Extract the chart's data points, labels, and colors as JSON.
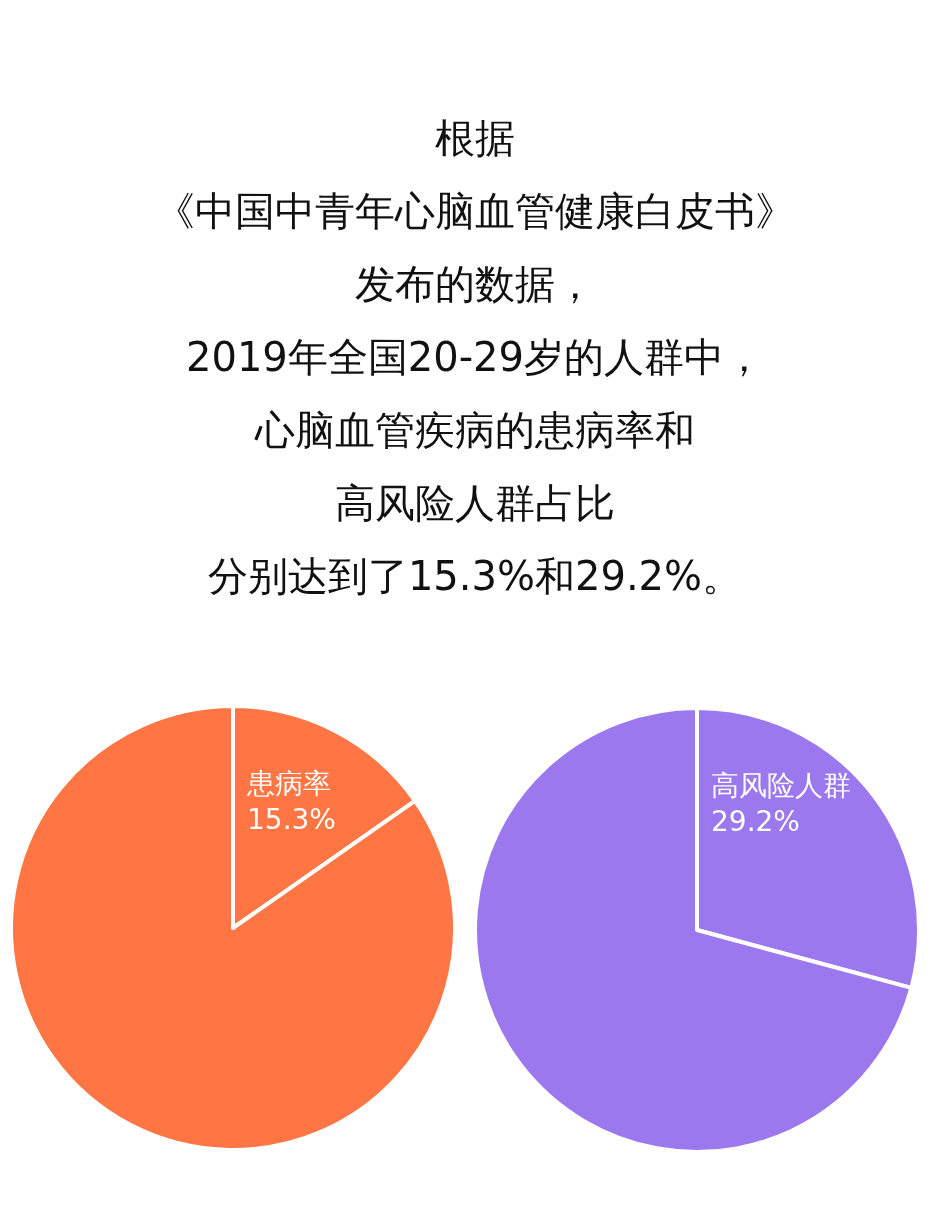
{
  "chart_data": [
    {
      "type": "other",
      "annotations": [
        "根据",
        "《中国中青年心脑血管健康白皮书》",
        "发布的数据，",
        "2019年全国20-29岁的人群中，",
        "心脑血管疾病的患病率和",
        "高风险人群占比",
        "分别达到了15.3%和29.2%。"
      ]
    },
    {
      "type": "pie",
      "categories": [
        "患病率",
        null
      ],
      "values": [
        15.3,
        84.7
      ],
      "value_labels": [
        "15.3%",
        null
      ],
      "colors": [
        "#ff7543",
        "#ff7543"
      ]
    },
    {
      "type": "pie",
      "categories": [
        "高风险人群",
        null
      ],
      "values": [
        29.2,
        70.8
      ],
      "value_labels": [
        "29.2%",
        null
      ],
      "colors": [
        "#9b78ee",
        "#9b78ee"
      ]
    }
  ]
}
